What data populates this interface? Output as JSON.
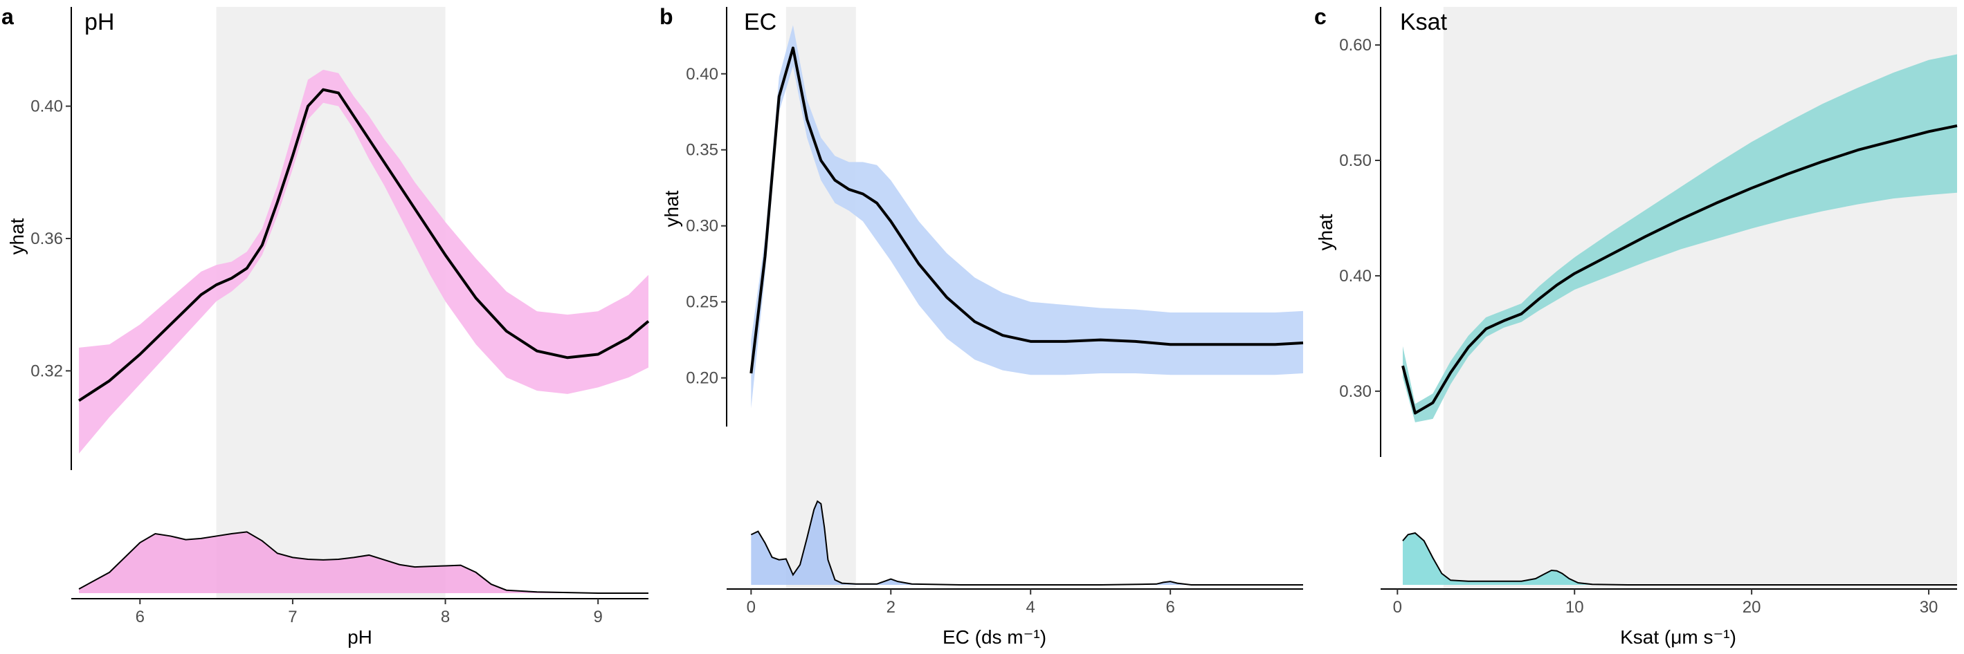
{
  "chart_data": [
    {
      "panel_label": "a",
      "type": "line",
      "title": "pH",
      "xlabel": "pH",
      "ylabel": "yhat",
      "xlim": [
        5.55,
        9.33
      ],
      "ylim": [
        0.29,
        0.43
      ],
      "yticks": [
        0.32,
        0.36,
        0.4
      ],
      "ytick_labels": [
        "0.32",
        "0.36",
        "0.40"
      ],
      "xticks": [
        6,
        7,
        8,
        9
      ],
      "xtick_labels": [
        "6",
        "7",
        "8",
        "9"
      ],
      "shaded_range": [
        6.5,
        8.0
      ],
      "color": "#f9b8ec",
      "density_color": "#f3a6e2",
      "x": [
        5.6,
        5.8,
        6.0,
        6.2,
        6.4,
        6.5,
        6.6,
        6.7,
        6.8,
        6.9,
        7.0,
        7.1,
        7.2,
        7.3,
        7.4,
        7.5,
        7.6,
        7.7,
        7.8,
        7.9,
        8.0,
        8.2,
        8.4,
        8.6,
        8.8,
        9.0,
        9.2,
        9.33
      ],
      "y": [
        0.311,
        0.317,
        0.325,
        0.334,
        0.343,
        0.346,
        0.348,
        0.351,
        0.358,
        0.371,
        0.385,
        0.4,
        0.405,
        0.404,
        0.397,
        0.39,
        0.383,
        0.376,
        0.369,
        0.362,
        0.355,
        0.342,
        0.332,
        0.326,
        0.324,
        0.325,
        0.33,
        0.335
      ],
      "lower": [
        0.295,
        0.306,
        0.316,
        0.326,
        0.336,
        0.341,
        0.344,
        0.348,
        0.355,
        0.367,
        0.381,
        0.396,
        0.401,
        0.4,
        0.393,
        0.384,
        0.376,
        0.367,
        0.358,
        0.349,
        0.341,
        0.328,
        0.318,
        0.314,
        0.313,
        0.315,
        0.318,
        0.321
      ],
      "upper": [
        0.327,
        0.328,
        0.334,
        0.342,
        0.35,
        0.352,
        0.353,
        0.356,
        0.363,
        0.376,
        0.392,
        0.408,
        0.411,
        0.41,
        0.403,
        0.397,
        0.39,
        0.384,
        0.377,
        0.371,
        0.365,
        0.354,
        0.344,
        0.338,
        0.337,
        0.338,
        0.343,
        0.349
      ],
      "density_x": [
        5.6,
        5.8,
        6.0,
        6.1,
        6.2,
        6.3,
        6.4,
        6.5,
        6.6,
        6.7,
        6.8,
        6.9,
        7.0,
        7.1,
        7.2,
        7.3,
        7.4,
        7.5,
        7.6,
        7.7,
        7.8,
        7.9,
        8.0,
        8.1,
        8.2,
        8.3,
        8.4,
        8.6,
        8.8,
        9.0,
        9.33
      ],
      "density_y": [
        0.07,
        0.35,
        0.85,
        1.0,
        0.96,
        0.9,
        0.92,
        0.96,
        1.0,
        1.03,
        0.88,
        0.67,
        0.6,
        0.57,
        0.56,
        0.57,
        0.6,
        0.64,
        0.56,
        0.48,
        0.44,
        0.45,
        0.46,
        0.47,
        0.35,
        0.15,
        0.05,
        0.02,
        0.01,
        0.0,
        0.0
      ]
    },
    {
      "panel_label": "b",
      "type": "line",
      "title": "EC",
      "xlabel": "EC (ds m⁻¹)",
      "ylabel": "yhat",
      "xlim": [
        -0.35,
        7.9
      ],
      "ylim": [
        0.168,
        0.444
      ],
      "yticks": [
        0.2,
        0.25,
        0.3,
        0.35,
        0.4
      ],
      "ytick_labels": [
        "0.20",
        "0.25",
        "0.30",
        "0.35",
        "0.40"
      ],
      "xticks": [
        0,
        2,
        4,
        6
      ],
      "xtick_labels": [
        "0",
        "2",
        "4",
        "6"
      ],
      "shaded_range": [
        0.5,
        1.5
      ],
      "color": "#bfd5f9",
      "density_color": "#a9c4f5",
      "x": [
        0.0,
        0.2,
        0.4,
        0.6,
        0.8,
        1.0,
        1.2,
        1.4,
        1.6,
        1.8,
        2.0,
        2.4,
        2.8,
        3.2,
        3.6,
        4.0,
        4.5,
        5.0,
        5.5,
        6.0,
        6.5,
        7.0,
        7.5,
        7.9
      ],
      "y": [
        0.203,
        0.28,
        0.385,
        0.417,
        0.37,
        0.343,
        0.33,
        0.324,
        0.321,
        0.315,
        0.303,
        0.275,
        0.253,
        0.237,
        0.228,
        0.224,
        0.224,
        0.225,
        0.224,
        0.222,
        0.222,
        0.222,
        0.222,
        0.223
      ],
      "lower": [
        0.18,
        0.268,
        0.375,
        0.405,
        0.358,
        0.33,
        0.315,
        0.31,
        0.303,
        0.29,
        0.277,
        0.248,
        0.226,
        0.212,
        0.205,
        0.202,
        0.202,
        0.203,
        0.203,
        0.202,
        0.202,
        0.202,
        0.202,
        0.203
      ],
      "upper": [
        0.225,
        0.292,
        0.398,
        0.432,
        0.383,
        0.358,
        0.346,
        0.342,
        0.342,
        0.34,
        0.33,
        0.303,
        0.282,
        0.266,
        0.256,
        0.25,
        0.248,
        0.246,
        0.245,
        0.243,
        0.243,
        0.243,
        0.243,
        0.244
      ],
      "density_x": [
        0.0,
        0.1,
        0.2,
        0.3,
        0.4,
        0.5,
        0.6,
        0.7,
        0.8,
        0.9,
        0.95,
        1.0,
        1.05,
        1.1,
        1.2,
        1.3,
        1.5,
        1.8,
        1.9,
        2.0,
        2.1,
        2.3,
        3.0,
        4.0,
        5.0,
        5.8,
        5.9,
        6.0,
        6.1,
        6.3,
        7.0,
        7.9
      ],
      "density_y": [
        0.6,
        0.64,
        0.5,
        0.33,
        0.3,
        0.31,
        0.12,
        0.24,
        0.56,
        0.9,
        1.0,
        0.97,
        0.68,
        0.3,
        0.06,
        0.02,
        0.01,
        0.01,
        0.04,
        0.07,
        0.04,
        0.01,
        0.0,
        0.0,
        0.0,
        0.01,
        0.03,
        0.04,
        0.02,
        0.0,
        0.0,
        0.0
      ]
    },
    {
      "panel_label": "c",
      "type": "line",
      "title": "Ksat",
      "xlabel": "Ksat (μm s⁻¹)",
      "ylabel": "yhat",
      "xlim": [
        -0.95,
        31.6
      ],
      "ylim": [
        0.243,
        0.633
      ],
      "yticks": [
        0.3,
        0.4,
        0.5,
        0.6
      ],
      "ytick_labels": [
        "0.30",
        "0.40",
        "0.50",
        "0.60"
      ],
      "xticks": [
        0,
        10,
        20,
        30
      ],
      "xtick_labels": [
        "0",
        "10",
        "20",
        "30"
      ],
      "shaded_range": [
        2.6,
        31.6
      ],
      "color": "#93d9d7",
      "density_color": "#7dd8d8",
      "x": [
        0.3,
        1.0,
        2.0,
        3.0,
        4.0,
        5.0,
        6.0,
        7.0,
        8.0,
        9.0,
        10.0,
        12.0,
        14.0,
        16.0,
        18.0,
        20.0,
        22.0,
        24.0,
        26.0,
        28.0,
        30.0,
        31.6
      ],
      "y": [
        0.322,
        0.281,
        0.29,
        0.316,
        0.338,
        0.354,
        0.361,
        0.367,
        0.38,
        0.392,
        0.402,
        0.418,
        0.434,
        0.449,
        0.463,
        0.476,
        0.488,
        0.499,
        0.509,
        0.517,
        0.525,
        0.53
      ],
      "lower": [
        0.312,
        0.273,
        0.276,
        0.306,
        0.33,
        0.347,
        0.355,
        0.36,
        0.37,
        0.379,
        0.388,
        0.4,
        0.412,
        0.423,
        0.432,
        0.441,
        0.449,
        0.456,
        0.462,
        0.467,
        0.47,
        0.472
      ],
      "upper": [
        0.339,
        0.289,
        0.298,
        0.326,
        0.348,
        0.364,
        0.37,
        0.376,
        0.391,
        0.404,
        0.416,
        0.437,
        0.457,
        0.477,
        0.497,
        0.516,
        0.533,
        0.549,
        0.563,
        0.576,
        0.587,
        0.592
      ],
      "density_x": [
        0.3,
        0.6,
        1.0,
        1.5,
        2.0,
        2.5,
        3.0,
        4.0,
        5.0,
        6.0,
        7.0,
        7.8,
        8.3,
        8.7,
        9.0,
        9.3,
        9.7,
        10.2,
        11.0,
        13.0,
        20.0,
        31.6
      ],
      "density_y": [
        0.85,
        0.97,
        1.0,
        0.85,
        0.52,
        0.22,
        0.09,
        0.07,
        0.07,
        0.07,
        0.07,
        0.12,
        0.21,
        0.28,
        0.27,
        0.22,
        0.12,
        0.04,
        0.01,
        0.0,
        0.0,
        0.0
      ]
    }
  ]
}
